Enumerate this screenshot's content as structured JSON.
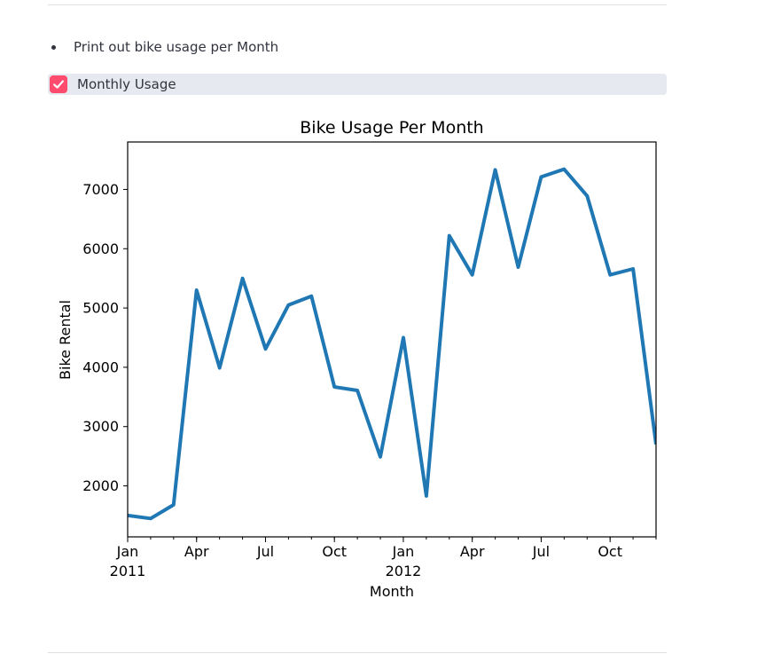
{
  "list": {
    "items": [
      "Print out bike usage per Month"
    ]
  },
  "checkbox": {
    "label": "Monthly Usage",
    "checked": true,
    "color": "#ff4b6e",
    "icon": "check-icon"
  },
  "chart_data": {
    "type": "line",
    "title": "Bike Usage Per Month",
    "xlabel": "Month",
    "ylabel": "Bike Rental",
    "color": "#1f77b4",
    "grid": false,
    "x": [
      "2011-01",
      "2011-02",
      "2011-03",
      "2011-04",
      "2011-05",
      "2011-06",
      "2011-07",
      "2011-08",
      "2011-09",
      "2011-10",
      "2011-11",
      "2011-12",
      "2012-01",
      "2012-02",
      "2012-03",
      "2012-04",
      "2012-05",
      "2012-06",
      "2012-07",
      "2012-08",
      "2012-09",
      "2012-10",
      "2012-11",
      "2012-12"
    ],
    "values": [
      1500,
      1450,
      1680,
      5300,
      3990,
      5500,
      4310,
      5050,
      5200,
      3670,
      3610,
      2490,
      4500,
      1830,
      6220,
      5560,
      7330,
      5690,
      7210,
      7340,
      6890,
      5560,
      5660,
      2700
    ],
    "ylim": [
      1140,
      7800
    ],
    "yticks": [
      "2000",
      "3000",
      "4000",
      "5000",
      "6000",
      "7000"
    ],
    "xticks": [
      {
        "label": "Jan",
        "sublabel": "2011",
        "month": "2011-01"
      },
      {
        "label": "Apr",
        "sublabel": "",
        "month": "2011-04"
      },
      {
        "label": "Jul",
        "sublabel": "",
        "month": "2011-07"
      },
      {
        "label": "Oct",
        "sublabel": "",
        "month": "2011-10"
      },
      {
        "label": "Jan",
        "sublabel": "2012",
        "month": "2012-01"
      },
      {
        "label": "Apr",
        "sublabel": "",
        "month": "2012-04"
      },
      {
        "label": "Jul",
        "sublabel": "",
        "month": "2012-07"
      },
      {
        "label": "Oct",
        "sublabel": "",
        "month": "2012-10"
      }
    ]
  }
}
